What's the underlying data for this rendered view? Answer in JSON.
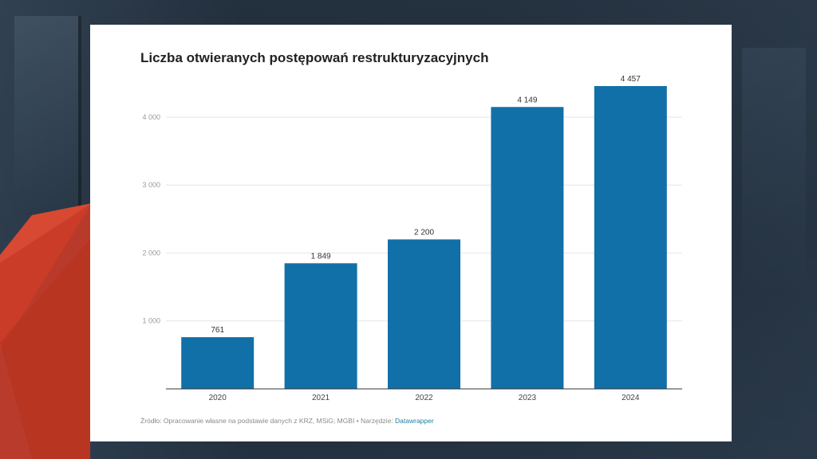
{
  "chart_data": {
    "type": "bar",
    "title": "Liczba otwieranych postępowań restrukturyzacyjnych",
    "categories": [
      "2020",
      "2021",
      "2022",
      "2023",
      "2024"
    ],
    "values": [
      761,
      1849,
      2200,
      4149,
      4457
    ],
    "value_labels": [
      "761",
      "1 849",
      "2 200",
      "4 149",
      "4 457"
    ],
    "yticks": [
      1000,
      2000,
      3000,
      4000
    ],
    "ytick_labels": [
      "1 000",
      "2 000",
      "3 000",
      "4 000"
    ],
    "ylim": [
      0,
      4457
    ],
    "xlabel": "",
    "ylabel": "",
    "grid": true,
    "bar_color": "#1270a8"
  },
  "source": {
    "text": "Źródło: Opracowanie własne na podstawie danych z KRZ, MSiG; MGBI • Narzędzie: ",
    "tool": "Datawrapper"
  },
  "colors": {
    "background": "#1f2c3a",
    "accent_red": "#d9452e",
    "link": "#1d81a2"
  }
}
